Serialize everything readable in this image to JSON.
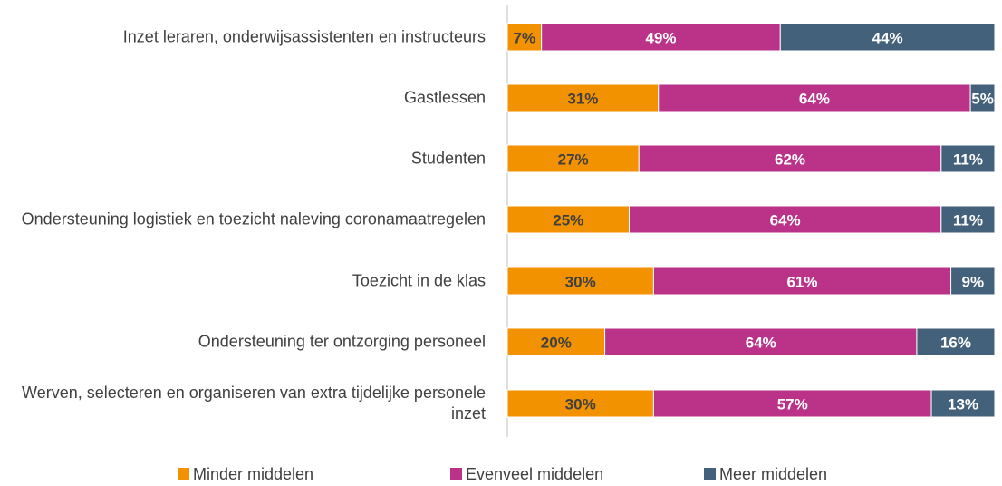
{
  "chart_data": {
    "type": "stacked-bar-horizontal",
    "categories": [
      "Inzet leraren, onderwijsassistenten en instructeurs",
      "Gastlessen",
      "Studenten",
      "Ondersteuning logistiek en toezicht naleving coronamaatregelen",
      "Toezicht in de klas",
      "Ondersteuning ter ontzorging personeel",
      "Werven, selecteren en organiseren van extra tijdelijke personele inzet"
    ],
    "series": [
      {
        "name": "Minder middelen",
        "color": "#f39200",
        "values": [
          7,
          31,
          27,
          25,
          30,
          20,
          30
        ],
        "value_labels": [
          "7%",
          "31%",
          "27%",
          "25%",
          "30%",
          "20%",
          "30%"
        ]
      },
      {
        "name": "Evenveel middelen",
        "color": "#bb3289",
        "values": [
          49,
          64,
          62,
          64,
          61,
          64,
          57
        ],
        "value_labels": [
          "49%",
          "64%",
          "62%",
          "64%",
          "61%",
          "64%",
          "57%"
        ]
      },
      {
        "name": "Meer middelen",
        "color": "#44617b",
        "values": [
          44,
          5,
          11,
          11,
          9,
          16,
          13
        ],
        "value_labels": [
          "44%",
          "5%",
          "11%",
          "11%",
          "9%",
          "16%",
          "13%"
        ]
      }
    ],
    "xlim": [
      0,
      100
    ]
  }
}
